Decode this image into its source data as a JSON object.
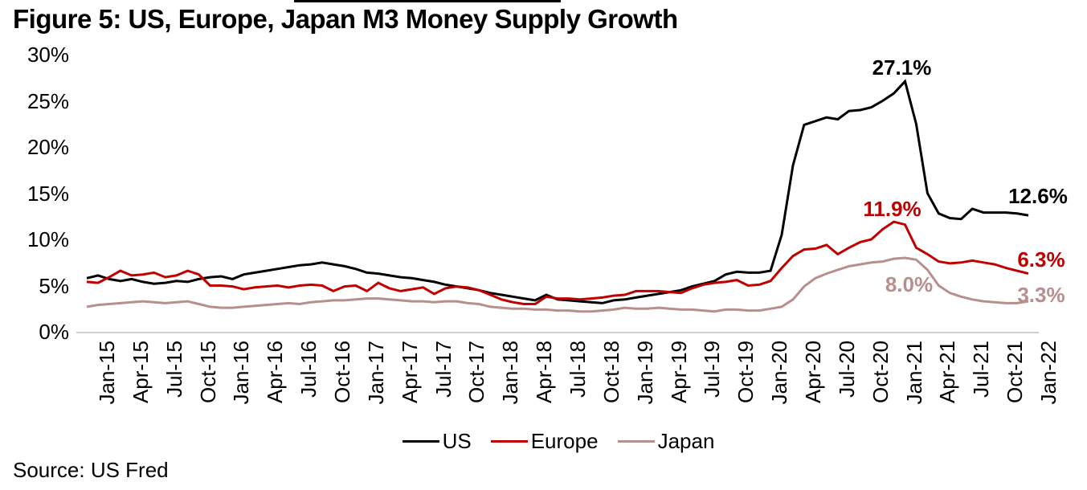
{
  "figure": {
    "title": "Figure 5: US, Europe, Japan M3 Money Supply Growth",
    "source": "Source: US Fred"
  },
  "chart_data": {
    "type": "line",
    "title": "Figure 5: US, Europe, Japan M3 Money Supply Growth",
    "xlabel": "",
    "ylabel": "",
    "ylim": [
      0,
      30
    ],
    "y_tick_labels": [
      "30%",
      "25%",
      "20%",
      "15%",
      "10%",
      "5%",
      "0%"
    ],
    "gridlines": false,
    "baseline_axis_color": "#d0cece",
    "legend_position": "bottom",
    "x_tick_labels": [
      "Jan-15",
      "Apr-15",
      "Jul-15",
      "Oct-15",
      "Jan-16",
      "Apr-16",
      "Jul-16",
      "Oct-16",
      "Jan-17",
      "Apr-17",
      "Jul-17",
      "Oct-17",
      "Jan-18",
      "Apr-18",
      "Jul-18",
      "Oct-18",
      "Jan-19",
      "Apr-19",
      "Jul-19",
      "Oct-19",
      "Jan-20",
      "Apr-20",
      "Jul-20",
      "Oct-20",
      "Jan-21",
      "Apr-21",
      "Jul-21",
      "Oct-21",
      "Jan-22"
    ],
    "months_per_point": 1,
    "points_per_tick": 3,
    "series": [
      {
        "name": "US",
        "color": "#000000",
        "values": [
          5.8,
          6.1,
          5.7,
          5.5,
          5.7,
          5.4,
          5.2,
          5.3,
          5.5,
          5.4,
          5.7,
          5.9,
          6.0,
          5.7,
          6.2,
          6.4,
          6.6,
          6.8,
          7.0,
          7.2,
          7.3,
          7.5,
          7.3,
          7.1,
          6.8,
          6.4,
          6.3,
          6.1,
          5.9,
          5.8,
          5.6,
          5.4,
          5.1,
          4.9,
          4.7,
          4.5,
          4.2,
          4.0,
          3.8,
          3.6,
          3.4,
          4.0,
          3.5,
          3.4,
          3.3,
          3.2,
          3.1,
          3.4,
          3.5,
          3.7,
          3.9,
          4.1,
          4.3,
          4.5,
          4.9,
          5.2,
          5.5,
          6.2,
          6.5,
          6.4,
          6.4,
          6.6,
          10.5,
          18.0,
          22.4,
          22.8,
          23.2,
          23.0,
          23.9,
          24.0,
          24.3,
          25.0,
          25.8,
          27.1,
          22.5,
          15.0,
          12.8,
          12.3,
          12.2,
          13.3,
          12.9,
          12.9,
          12.9,
          12.8,
          12.6
        ]
      },
      {
        "name": "Europe",
        "color": "#c00000",
        "values": [
          5.4,
          5.3,
          5.9,
          6.6,
          6.1,
          6.2,
          6.4,
          5.9,
          6.1,
          6.6,
          6.2,
          5.0,
          5.0,
          4.9,
          4.6,
          4.8,
          4.9,
          5.0,
          4.8,
          5.0,
          5.1,
          5.0,
          4.4,
          4.9,
          5.0,
          4.4,
          5.3,
          4.7,
          4.4,
          4.6,
          4.8,
          4.1,
          4.7,
          4.9,
          4.8,
          4.5,
          4.0,
          3.5,
          3.2,
          3.0,
          3.0,
          3.8,
          3.6,
          3.6,
          3.5,
          3.6,
          3.7,
          3.9,
          4.0,
          4.4,
          4.4,
          4.4,
          4.3,
          4.2,
          4.7,
          5.1,
          5.3,
          5.4,
          5.6,
          5.0,
          5.1,
          5.5,
          6.9,
          8.2,
          8.9,
          9.0,
          9.4,
          8.4,
          9.1,
          9.7,
          10.0,
          11.1,
          11.9,
          11.6,
          9.1,
          8.4,
          7.6,
          7.4,
          7.5,
          7.7,
          7.5,
          7.3,
          6.9,
          6.6,
          6.3
        ]
      },
      {
        "name": "Japan",
        "color": "#b78f8f",
        "values": [
          2.7,
          2.9,
          3.0,
          3.1,
          3.2,
          3.3,
          3.2,
          3.1,
          3.2,
          3.3,
          3.0,
          2.7,
          2.6,
          2.6,
          2.7,
          2.8,
          2.9,
          3.0,
          3.1,
          3.0,
          3.2,
          3.3,
          3.4,
          3.4,
          3.5,
          3.6,
          3.6,
          3.5,
          3.4,
          3.3,
          3.3,
          3.2,
          3.3,
          3.3,
          3.1,
          3.0,
          2.7,
          2.6,
          2.5,
          2.5,
          2.4,
          2.4,
          2.3,
          2.3,
          2.2,
          2.2,
          2.3,
          2.4,
          2.6,
          2.5,
          2.5,
          2.6,
          2.5,
          2.4,
          2.4,
          2.3,
          2.2,
          2.4,
          2.4,
          2.3,
          2.3,
          2.5,
          2.7,
          3.5,
          4.9,
          5.8,
          6.3,
          6.7,
          7.1,
          7.3,
          7.5,
          7.6,
          7.9,
          8.0,
          7.8,
          6.7,
          5.0,
          4.2,
          3.8,
          3.5,
          3.3,
          3.2,
          3.1,
          3.1,
          3.3
        ]
      }
    ],
    "annotations": [
      {
        "text": "27.1%",
        "series": "US",
        "month": "Feb-21",
        "value": 27.1
      },
      {
        "text": "12.6%",
        "series": "US",
        "month": "Jan-22",
        "value": 12.6
      },
      {
        "text": "11.9%",
        "series": "Europe",
        "month": "Jan-21",
        "value": 11.9
      },
      {
        "text": "6.3%",
        "series": "Europe",
        "month": "Jan-22",
        "value": 6.3
      },
      {
        "text": "8.0%",
        "series": "Japan",
        "month": "Feb-21",
        "value": 8.0
      },
      {
        "text": "3.3%",
        "series": "Japan",
        "month": "Jan-22",
        "value": 3.3
      }
    ],
    "legend": [
      {
        "label": "US",
        "color": "#000000"
      },
      {
        "label": "Europe",
        "color": "#c00000"
      },
      {
        "label": "Japan",
        "color": "#b78f8f"
      }
    ]
  }
}
